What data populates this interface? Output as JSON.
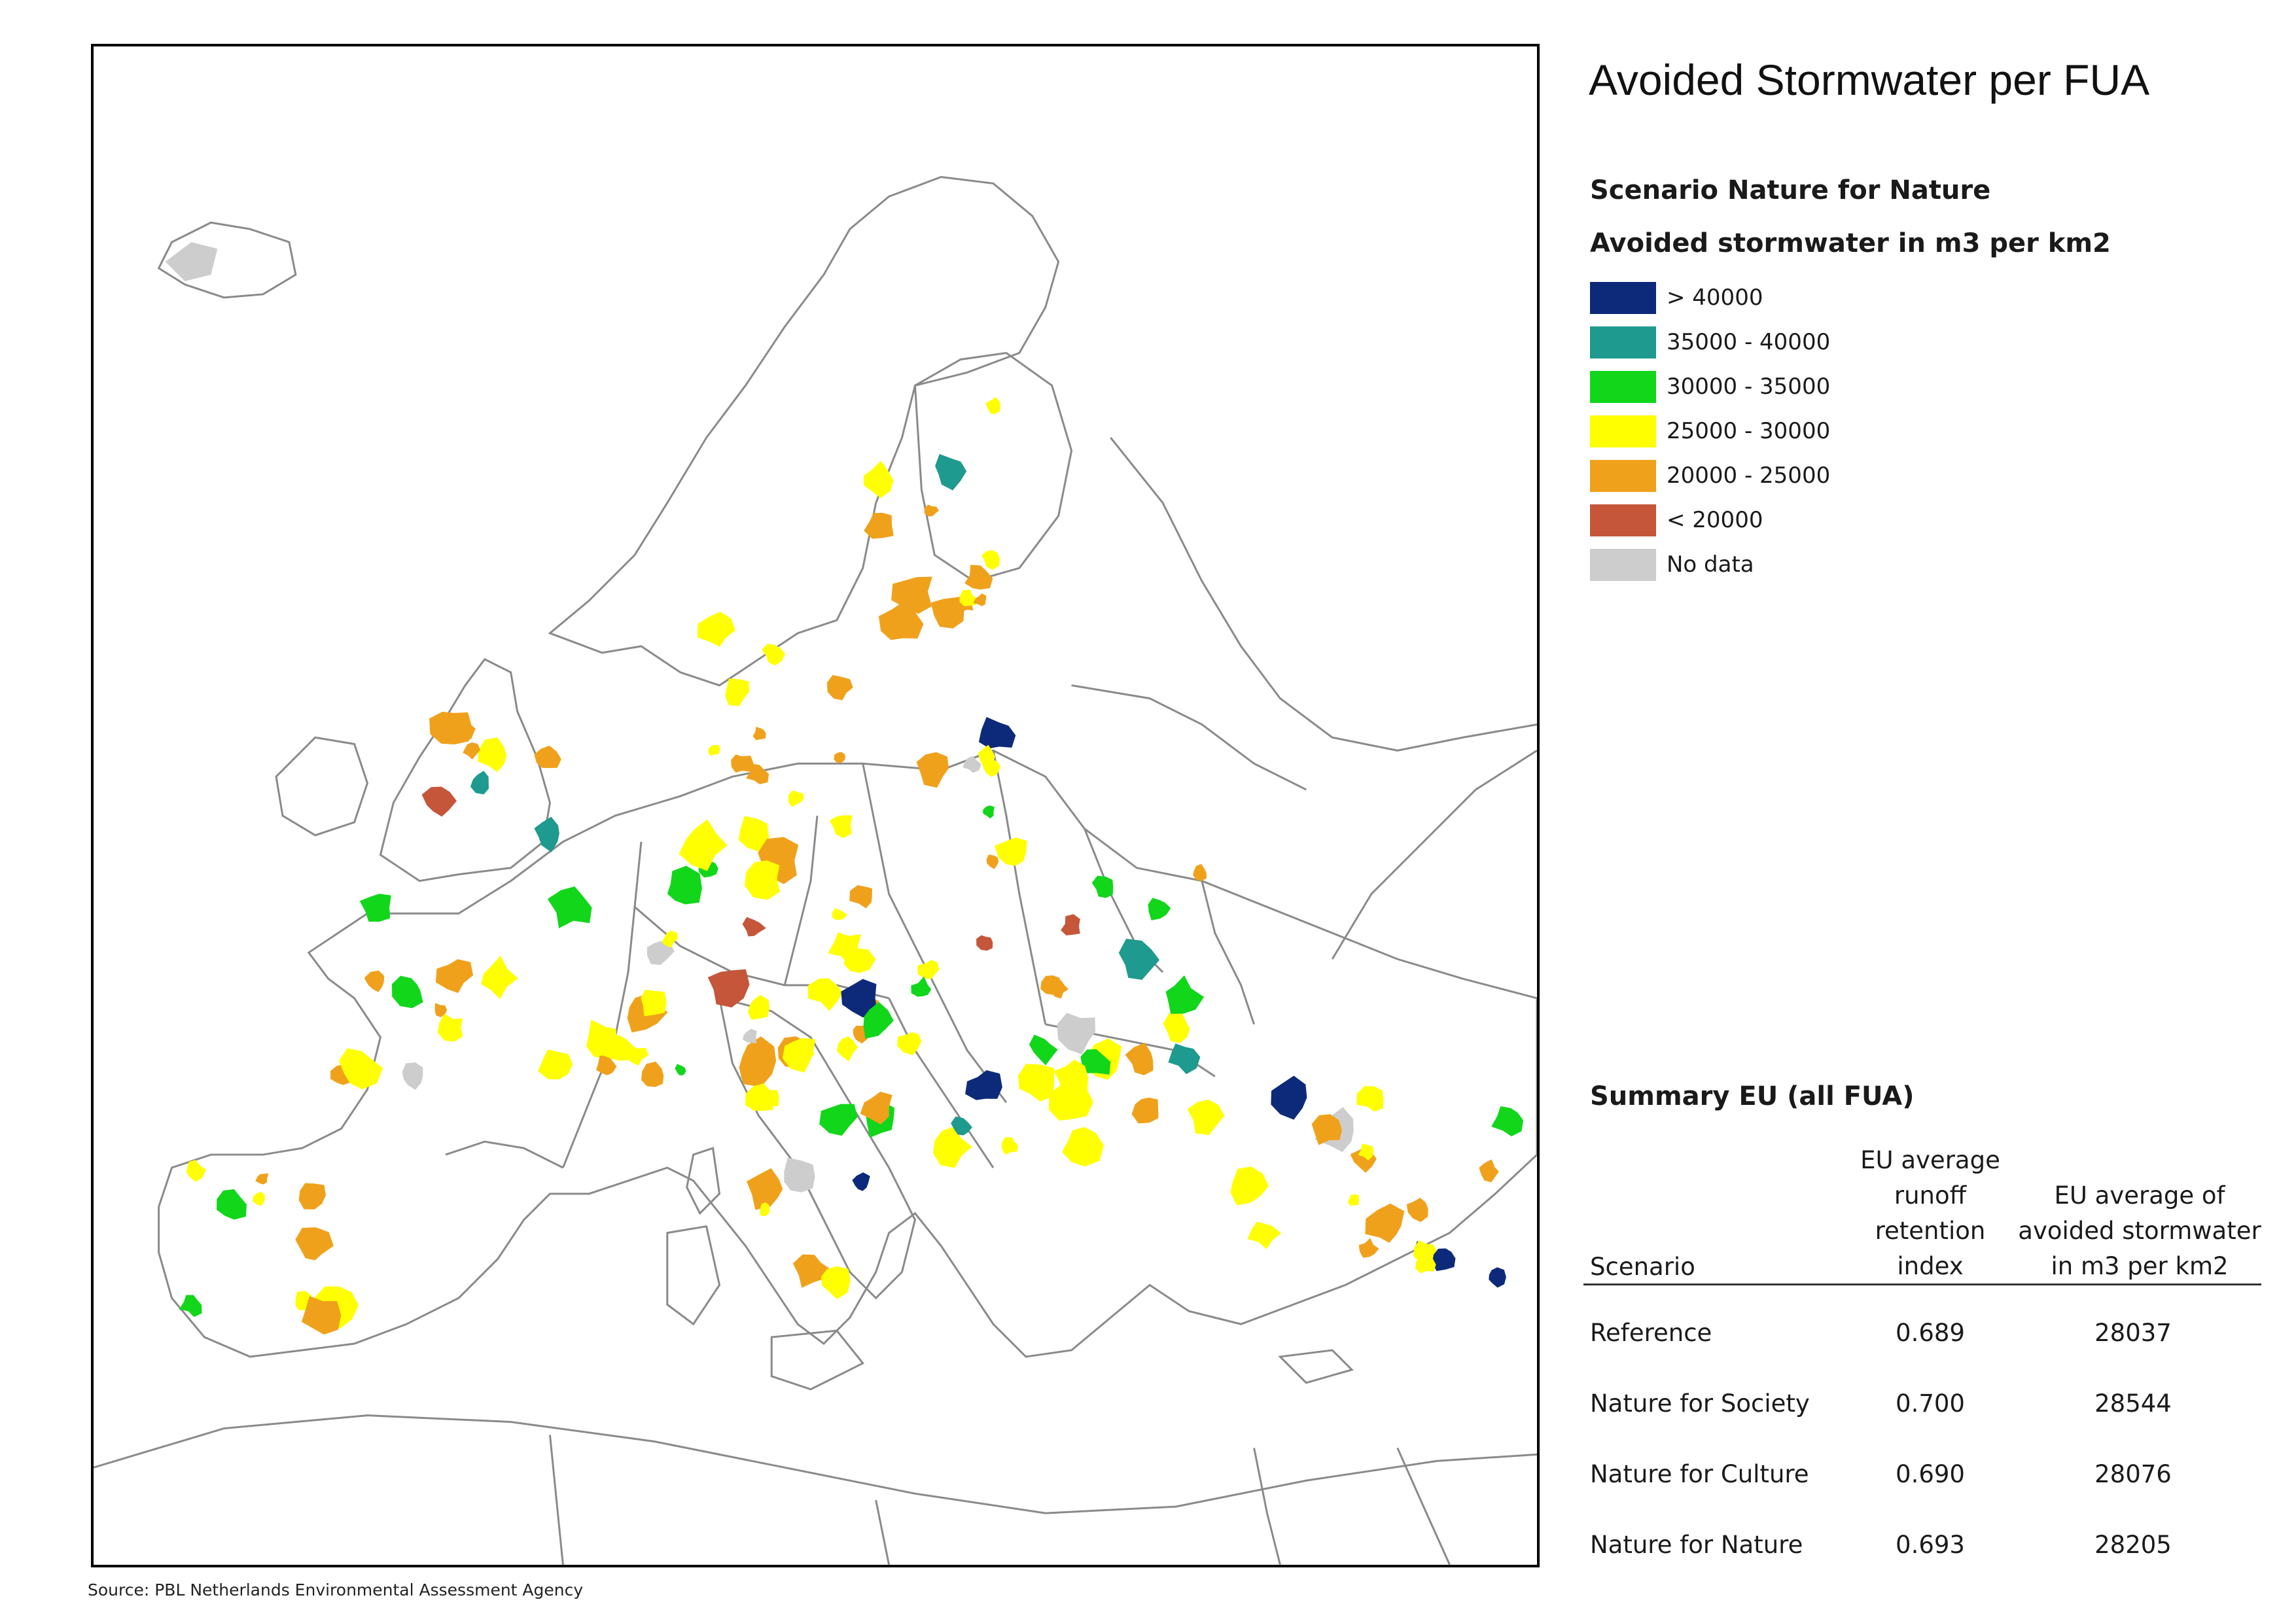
{
  "title": "Avoided Stormwater per FUA",
  "scenario_label": "Scenario Nature for Nature",
  "legend_title": "Avoided stormwater in m3 per km2",
  "legend": [
    {
      "label": "> 40000",
      "color": "#0d2a7a"
    },
    {
      "label": "35000 - 40000",
      "color": "#1e9a8e"
    },
    {
      "label": "30000 - 35000",
      "color": "#11d61a"
    },
    {
      "label": "25000 - 30000",
      "color": "#ffff00"
    },
    {
      "label": "20000 - 25000",
      "color": "#f0a11c"
    },
    {
      "label": "< 20000",
      "color": "#c5563a"
    },
    {
      "label": "No data",
      "color": "#cdcdcd"
    }
  ],
  "summary": {
    "title": "Summary EU (all FUA)",
    "col_scenario": "Scenario",
    "col_index": [
      "EU average",
      "runoff",
      "retention",
      "index"
    ],
    "col_avg": [
      "EU average of",
      "avoided stormwater",
      "in m3 per km2"
    ],
    "rows": [
      {
        "scenario": "Reference",
        "index": "0.689",
        "avg": "28037"
      },
      {
        "scenario": "Nature for Society",
        "index": "0.700",
        "avg": "28544"
      },
      {
        "scenario": "Nature for Culture",
        "index": "0.690",
        "avg": "28076"
      },
      {
        "scenario": "Nature for Nature",
        "index": "0.693",
        "avg": "28205"
      }
    ]
  },
  "source": "Source: PBL Netherlands Environmental Assessment Agency"
}
